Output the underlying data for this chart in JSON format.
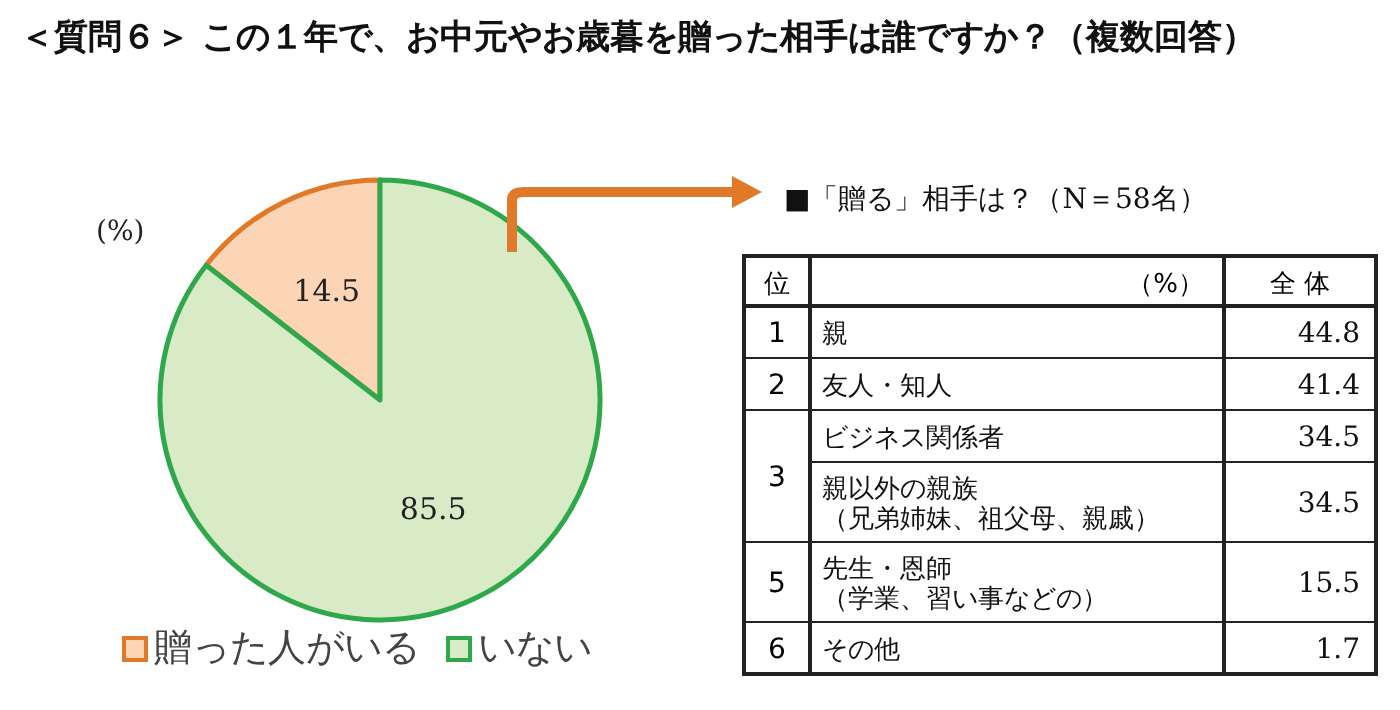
{
  "chart_data": [
    {
      "type": "pie",
      "title": "＜質問６＞ この１年で、お中元やお歳暮を贈った相手は誰ですか？（複数回答）",
      "categories": [
        "贈った人がいる",
        "いない"
      ],
      "values": [
        14.5,
        85.5
      ],
      "colors": [
        "#fbd5b5",
        "#d8eac6"
      ],
      "data_labels": true,
      "legend": "bottom",
      "annotations": [
        "(%)"
      ]
    },
    {
      "type": "other",
      "title": "■「贈る」相手は？（N＝58名）",
      "categories": [
        "親",
        "友人・知人",
        "ビジネス関係者",
        "親以外の親族（兄弟姉妹、祖父母、親戚）",
        "先生・恩師（学業、習い事などの）",
        "その他"
      ],
      "values": [
        44.8,
        41.4,
        34.5,
        34.5,
        15.5,
        1.7
      ],
      "data_labels": true,
      "annotations": [
        "位",
        "（%）",
        "全 体",
        "1",
        "2",
        "3",
        "5",
        "6"
      ]
    }
  ]
}
